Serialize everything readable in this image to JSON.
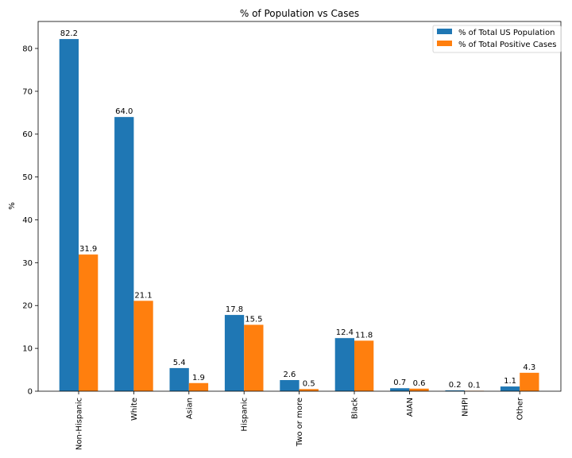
{
  "chart_data": {
    "type": "bar",
    "title": "% of Population vs Cases",
    "xlabel": "",
    "ylabel": "%",
    "categories": [
      "Non-Hispanic",
      "White",
      "Asian",
      "Hispanic",
      "Two or more",
      "Black",
      "AIAN",
      "NHPI",
      "Other"
    ],
    "series": [
      {
        "name": "% of Total US Population",
        "color": "#1f77b4",
        "values": [
          82.2,
          64.0,
          5.4,
          17.8,
          2.6,
          12.4,
          0.7,
          0.2,
          1.1
        ],
        "labels": [
          "82.2",
          "64.0",
          "5.4",
          "17.8",
          "2.6",
          "12.4",
          "0.7",
          "0.2",
          "1.1"
        ]
      },
      {
        "name": "% of Total Positive Cases",
        "color": "#ff7f0e",
        "values": [
          31.9,
          21.1,
          1.9,
          15.5,
          0.5,
          11.8,
          0.6,
          0.1,
          4.3
        ],
        "labels": [
          "31.9",
          "21.1",
          "1.9",
          "15.5",
          "0.5",
          "11.8",
          "0.6",
          "0.1",
          "4.3"
        ]
      }
    ],
    "ylim": [
      0,
      86.3
    ],
    "yticks": [
      0,
      10,
      20,
      30,
      40,
      50,
      60,
      70,
      80
    ],
    "ytick_labels": [
      "0",
      "10",
      "20",
      "30",
      "40",
      "50",
      "60",
      "70",
      "80"
    ],
    "grid": false,
    "legend_position": "top-right"
  }
}
